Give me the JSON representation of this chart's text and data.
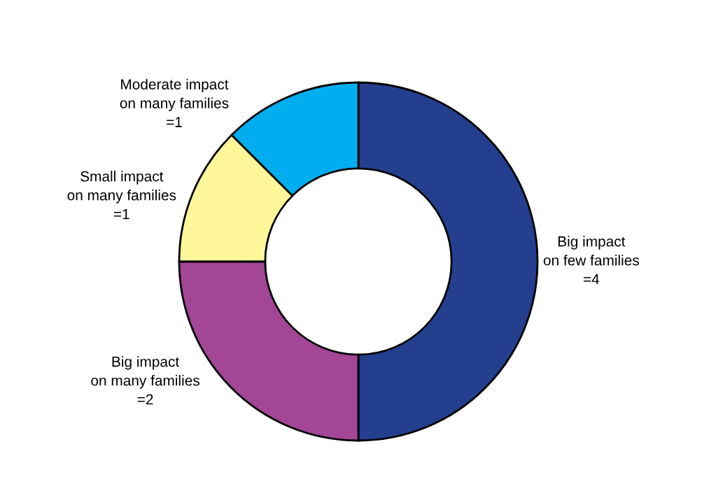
{
  "chart_data": {
    "type": "donut",
    "categories": [
      "Big impact\non few families",
      "Big impact\non many families",
      "Small impact\non many families",
      "Moderate impact\non many families"
    ],
    "values": [
      4,
      2,
      1,
      1
    ],
    "value_labels": [
      "=4",
      "=2",
      "=1",
      "=1"
    ],
    "colors": [
      "#253f8f",
      "#a34696",
      "#fff799",
      "#00aeef"
    ],
    "legend": false
  }
}
